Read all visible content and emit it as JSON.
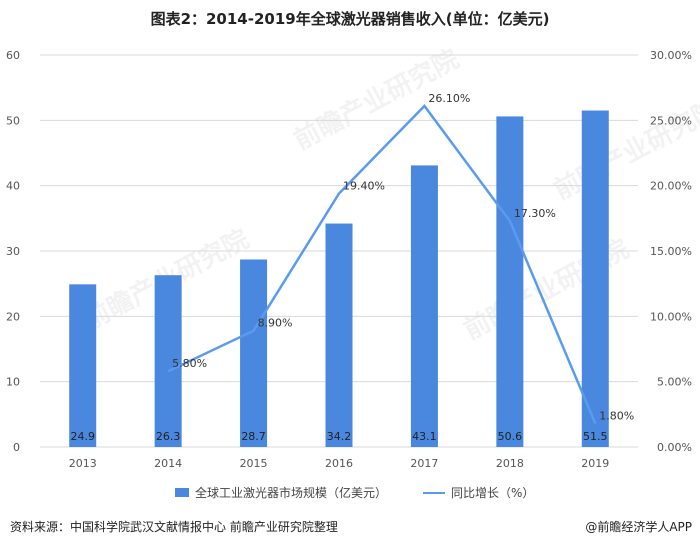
{
  "title": "图表2：2014-2019年全球激光器销售收入(单位：亿美元)",
  "source": "资料来源：中国科学院武汉文献情报中心 前瞻产业研究院整理",
  "brand": "@前瞻经济学人APP",
  "watermark": "前瞻产业研究院",
  "colors": {
    "bar": "#4a88e0",
    "line": "#5a9bf0",
    "grid": "#d9d9d9",
    "axis_text": "#555555"
  },
  "chart_data": {
    "type": "bar",
    "categories": [
      "2013",
      "2014",
      "2015",
      "2016",
      "2017",
      "2018",
      "2019"
    ],
    "series": [
      {
        "name": "全球工业激光器市场规模（亿美元）",
        "type": "bar",
        "axis": "left",
        "values": [
          24.9,
          26.3,
          28.7,
          34.2,
          43.1,
          50.6,
          51.5
        ],
        "labels": [
          "24.9",
          "26.3",
          "28.7",
          "34.2",
          "43.1",
          "50.6",
          "51.5"
        ]
      },
      {
        "name": "同比增长（%）",
        "type": "line",
        "axis": "right",
        "values": [
          null,
          5.8,
          8.9,
          19.4,
          26.1,
          17.3,
          1.8
        ],
        "labels": [
          "",
          "5.80%",
          "8.90%",
          "19.40%",
          "26.10%",
          "17.30%",
          "1.80%"
        ]
      }
    ],
    "ylim_left": [
      0,
      60
    ],
    "yticks_left": [
      "0",
      "10",
      "20",
      "30",
      "40",
      "50",
      "60"
    ],
    "ylim_right": [
      0,
      30
    ],
    "yticks_right": [
      "0.00%",
      "5.00%",
      "10.00%",
      "15.00%",
      "20.00%",
      "25.00%",
      "30.00%"
    ],
    "grid": true,
    "legend_position": "bottom"
  }
}
